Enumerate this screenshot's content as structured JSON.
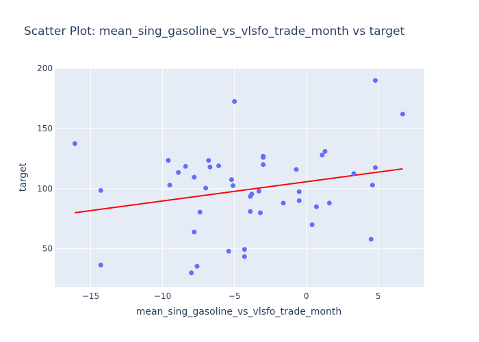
{
  "chart_data": {
    "type": "scatter",
    "title": "Scatter Plot: mean_sing_gasoline_vs_vlsfo_trade_month vs target",
    "xlabel": "mean_sing_gasoline_vs_vlsfo_trade_month",
    "ylabel": "target",
    "xlim": [
      -17.5,
      8.2
    ],
    "ylim": [
      18,
      200
    ],
    "xticks": [
      -15,
      -10,
      -5,
      0,
      5
    ],
    "xtick_labels": [
      "−15",
      "−10",
      "−5",
      "0",
      "5"
    ],
    "yticks": [
      50,
      100,
      150,
      200
    ],
    "ytick_labels": [
      "50",
      "100",
      "150",
      "200"
    ],
    "grid": true,
    "series": [
      {
        "type": "markers",
        "color": "#636efa",
        "points": [
          [
            -16.1,
            137.5
          ],
          [
            -14.3,
            98.5
          ],
          [
            -14.3,
            36.5
          ],
          [
            -9.6,
            123.5
          ],
          [
            -9.5,
            103.0
          ],
          [
            -8.9,
            113.5
          ],
          [
            -8.4,
            118.5
          ],
          [
            -7.8,
            109.5
          ],
          [
            -7.8,
            64.0
          ],
          [
            -7.6,
            35.5
          ],
          [
            -7.4,
            80.5
          ],
          [
            -8.0,
            30.0
          ],
          [
            -7.0,
            100.5
          ],
          [
            -6.8,
            123.5
          ],
          [
            -6.7,
            118.0
          ],
          [
            -6.1,
            119.0
          ],
          [
            -5.4,
            48.0
          ],
          [
            -5.2,
            107.5
          ],
          [
            -5.0,
            172.5
          ],
          [
            -5.1,
            102.5
          ],
          [
            -4.3,
            49.5
          ],
          [
            -4.3,
            43.5
          ],
          [
            -3.9,
            81.0
          ],
          [
            -3.9,
            93.5
          ],
          [
            -3.8,
            95.5
          ],
          [
            -3.3,
            98.0
          ],
          [
            -3.2,
            80.0
          ],
          [
            -3.0,
            127.0
          ],
          [
            -3.0,
            126.0
          ],
          [
            -3.0,
            120.0
          ],
          [
            -1.6,
            88.0
          ],
          [
            -0.7,
            116.0
          ],
          [
            -0.5,
            90.0
          ],
          [
            -0.5,
            97.5
          ],
          [
            0.4,
            70.0
          ],
          [
            0.7,
            85.0
          ],
          [
            1.1,
            128.0
          ],
          [
            1.3,
            131.0
          ],
          [
            1.6,
            88.0
          ],
          [
            3.3,
            112.5
          ],
          [
            4.5,
            58.0
          ],
          [
            4.6,
            103.0
          ],
          [
            4.8,
            190.0
          ],
          [
            4.8,
            117.5
          ],
          [
            6.7,
            162.0
          ]
        ]
      },
      {
        "type": "line",
        "color": "#ff0000",
        "points": [
          [
            -16.1,
            80.0
          ],
          [
            6.7,
            116.5
          ]
        ]
      }
    ]
  }
}
